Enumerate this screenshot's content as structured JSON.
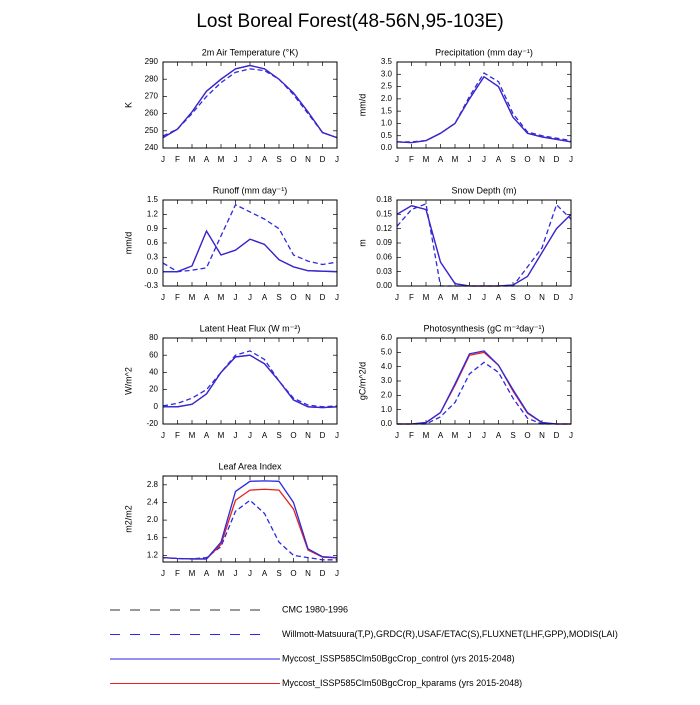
{
  "title": "Lost Boreal Forest(48-56N,95-103E)",
  "legend": [
    {
      "name": "CMC 1980-1996",
      "color": "#333333",
      "dash": true
    },
    {
      "name": "Willmott-Matsuura(T,P),GRDC(R),USAF/ETAC(S),FLUXNET(LHF,GPP),MODIS(LAI)",
      "color": "#2a2ae0",
      "dash": true
    },
    {
      "name": "Myccost_ISSP585Clm50BgcCrop_control (yrs 2015-2048)",
      "color": "#2a2ae0",
      "dash": false
    },
    {
      "name": "Myccost_ISSP585Clm50BgcCrop_kparams (yrs 2015-2048)",
      "color": "#e82020",
      "dash": false
    }
  ],
  "chart_data": [
    {
      "type": "line",
      "title": "2m Air Temperature (°K)",
      "ylabel": "K",
      "categories": [
        "J",
        "F",
        "M",
        "A",
        "M",
        "J",
        "J",
        "A",
        "S",
        "O",
        "N",
        "D",
        "J"
      ],
      "ylim": [
        240,
        290
      ],
      "yticks": [
        240,
        250,
        260,
        270,
        280,
        290
      ],
      "series": [
        {
          "name": "Willmott-Matsuura(T,P),GRDC(R),USAF/ETAC(S),FLUXNET(LHF,GPP),MODIS(LAI)",
          "color": "#2a2ae0",
          "dash": true,
          "values": [
            247,
            251,
            260,
            270,
            278,
            284,
            286,
            285,
            280,
            271,
            260,
            249,
            246
          ]
        },
        {
          "name": "Myccost_ISSP585Clm50BgcCrop_kparams (yrs 2015-2048)",
          "color": "#e82020",
          "dash": false,
          "values": [
            246,
            251,
            261,
            273,
            280,
            286,
            288,
            286,
            280,
            272,
            261,
            249,
            246
          ]
        },
        {
          "name": "Myccost_ISSP585Clm50BgcCrop_control (yrs 2015-2048)",
          "color": "#2a2ae0",
          "dash": false,
          "values": [
            246,
            251,
            261,
            273,
            280,
            286,
            288,
            286,
            280,
            272,
            261,
            249,
            246
          ]
        }
      ]
    },
    {
      "type": "line",
      "title": "Precipitation (mm day⁻¹)",
      "ylabel": "mm/d",
      "categories": [
        "J",
        "F",
        "M",
        "A",
        "M",
        "J",
        "J",
        "A",
        "S",
        "O",
        "N",
        "D",
        "J"
      ],
      "ylim": [
        0,
        3.5
      ],
      "yticks": [
        {
          "value": 0,
          "label": "0.0"
        },
        0.5,
        {
          "value": 1,
          "label": "1.0"
        },
        1.5,
        {
          "value": 2,
          "label": "2.0"
        },
        2.5,
        {
          "value": 3,
          "label": "3.0"
        },
        3.5
      ],
      "series": [
        {
          "name": "Willmott-Matsuura(T,P),GRDC(R),USAF/ETAC(S),FLUXNET(LHF,GPP),MODIS(LAI)",
          "color": "#2a2ae0",
          "dash": true,
          "values": [
            0.25,
            0.25,
            0.3,
            0.6,
            1.0,
            2.1,
            3.05,
            2.7,
            1.4,
            0.65,
            0.5,
            0.4,
            0.3
          ]
        },
        {
          "name": "Myccost_ISSP585Clm50BgcCrop_kparams (yrs 2015-2048)",
          "color": "#e82020",
          "dash": false,
          "values": [
            0.25,
            0.22,
            0.3,
            0.6,
            1.0,
            2.0,
            2.9,
            2.5,
            1.25,
            0.6,
            0.45,
            0.35,
            0.25
          ]
        },
        {
          "name": "Myccost_ISSP585Clm50BgcCrop_control (yrs 2015-2048)",
          "color": "#2a2ae0",
          "dash": false,
          "values": [
            0.25,
            0.22,
            0.3,
            0.6,
            1.0,
            2.0,
            2.9,
            2.5,
            1.25,
            0.6,
            0.45,
            0.35,
            0.25
          ]
        }
      ]
    },
    {
      "type": "line",
      "title": "Runoff (mm day⁻¹)",
      "ylabel": "mm/d",
      "categories": [
        "J",
        "F",
        "M",
        "A",
        "M",
        "J",
        "J",
        "A",
        "S",
        "O",
        "N",
        "D",
        "J"
      ],
      "ylim": [
        -0.3,
        1.5
      ],
      "yticks": [
        -0.3,
        {
          "value": 0,
          "label": "0.0"
        },
        0.3,
        0.6,
        0.9,
        1.2,
        1.5
      ],
      "series": [
        {
          "name": "Willmott-Matsuura(T,P),GRDC(R),USAF/ETAC(S),FLUXNET(LHF,GPP),MODIS(LAI)",
          "color": "#2a2ae0",
          "dash": true,
          "values": [
            0.18,
            0.0,
            0.03,
            0.08,
            0.75,
            1.4,
            1.25,
            1.1,
            0.9,
            0.35,
            0.22,
            0.15,
            0.2
          ]
        },
        {
          "name": "Myccost_ISSP585Clm50BgcCrop_kparams (yrs 2015-2048)",
          "color": "#e82020",
          "dash": false,
          "values": [
            0.0,
            0.0,
            0.12,
            0.85,
            0.35,
            0.45,
            0.68,
            0.57,
            0.25,
            0.1,
            0.02,
            0.01,
            0.0
          ]
        },
        {
          "name": "Myccost_ISSP585Clm50BgcCrop_control (yrs 2015-2048)",
          "color": "#2a2ae0",
          "dash": false,
          "values": [
            0.0,
            0.0,
            0.12,
            0.85,
            0.35,
            0.45,
            0.68,
            0.57,
            0.25,
            0.1,
            0.02,
            0.01,
            0.0
          ]
        }
      ]
    },
    {
      "type": "line",
      "title": "Snow Depth (m)",
      "ylabel": "m",
      "categories": [
        "J",
        "F",
        "M",
        "A",
        "M",
        "J",
        "J",
        "A",
        "S",
        "O",
        "N",
        "D",
        "J"
      ],
      "ylim": [
        0,
        0.18
      ],
      "yticks": [
        {
          "value": 0,
          "label": "0.00"
        },
        0.03,
        0.06,
        0.09,
        0.12,
        0.15,
        0.18
      ],
      "series": [
        {
          "name": "CMC 1980-1996",
          "color": "#2a2ae0",
          "dash": true,
          "values": [
            0.125,
            0.16,
            0.172,
            0.0,
            0.0,
            0.0,
            0.0,
            0.0,
            0.0,
            0.04,
            0.08,
            0.17,
            0.14
          ]
        },
        {
          "name": "Myccost_ISSP585Clm50BgcCrop_kparams (yrs 2015-2048)",
          "color": "#e82020",
          "dash": false,
          "values": [
            0.15,
            0.168,
            0.16,
            0.05,
            0.005,
            0.0,
            0.0,
            0.0,
            0.002,
            0.02,
            0.07,
            0.12,
            0.15
          ]
        },
        {
          "name": "Myccost_ISSP585Clm50BgcCrop_control (yrs 2015-2048)",
          "color": "#2a2ae0",
          "dash": false,
          "values": [
            0.15,
            0.168,
            0.16,
            0.05,
            0.005,
            0.0,
            0.0,
            0.0,
            0.002,
            0.02,
            0.07,
            0.12,
            0.15
          ]
        }
      ]
    },
    {
      "type": "line",
      "title": "Latent Heat Flux (W m⁻²)",
      "ylabel": "W/m^2",
      "categories": [
        "J",
        "F",
        "M",
        "A",
        "M",
        "J",
        "J",
        "A",
        "S",
        "O",
        "N",
        "D",
        "J"
      ],
      "ylim": [
        -20,
        80
      ],
      "yticks": [
        -20,
        0,
        20,
        40,
        60,
        80
      ],
      "series": [
        {
          "name": "Willmott-Matsuura(T,P),GRDC(R),USAF/ETAC(S),FLUXNET(LHF,GPP),MODIS(LAI)",
          "color": "#2a2ae0",
          "dash": true,
          "values": [
            1,
            4,
            10,
            20,
            40,
            60,
            65,
            55,
            30,
            10,
            2,
            0,
            1
          ]
        },
        {
          "name": "Myccost_ISSP585Clm50BgcCrop_kparams (yrs 2015-2048)",
          "color": "#e82020",
          "dash": false,
          "values": [
            0,
            0,
            3,
            15,
            40,
            58,
            60,
            50,
            30,
            8,
            0,
            -1,
            0
          ]
        },
        {
          "name": "Myccost_ISSP585Clm50BgcCrop_control (yrs 2015-2048)",
          "color": "#2a2ae0",
          "dash": false,
          "values": [
            0,
            0,
            3,
            15,
            40,
            58,
            60,
            50,
            30,
            8,
            0,
            -1,
            0
          ]
        }
      ]
    },
    {
      "type": "line",
      "title": "Photosynthesis (gC m⁻²day⁻¹)",
      "ylabel": "gC/m^2/d",
      "categories": [
        "J",
        "F",
        "M",
        "A",
        "M",
        "J",
        "J",
        "A",
        "S",
        "O",
        "N",
        "D",
        "J"
      ],
      "ylim": [
        0,
        6
      ],
      "yticks": [
        {
          "value": 0,
          "label": "0.0"
        },
        {
          "value": 1,
          "label": "1.0"
        },
        {
          "value": 2,
          "label": "2.0"
        },
        {
          "value": 3,
          "label": "3.0"
        },
        {
          "value": 4,
          "label": "4.0"
        },
        {
          "value": 5,
          "label": "5.0"
        },
        {
          "value": 6,
          "label": "6.0"
        }
      ],
      "series": [
        {
          "name": "Willmott-Matsuura(T,P),GRDC(R),USAF/ETAC(S),FLUXNET(LHF,GPP),MODIS(LAI)",
          "color": "#2a2ae0",
          "dash": true,
          "values": [
            0,
            0,
            0,
            0.5,
            1.5,
            3.5,
            4.3,
            3.6,
            1.8,
            0.4,
            0,
            0,
            0
          ]
        },
        {
          "name": "Myccost_ISSP585Clm50BgcCrop_kparams (yrs 2015-2048)",
          "color": "#e82020",
          "dash": false,
          "values": [
            0,
            0,
            0.1,
            0.8,
            2.7,
            4.8,
            5.0,
            4.1,
            2.3,
            0.75,
            0.1,
            0,
            0
          ]
        },
        {
          "name": "Myccost_ISSP585Clm50BgcCrop_control (yrs 2015-2048)",
          "color": "#2a2ae0",
          "dash": false,
          "values": [
            0,
            0,
            0.1,
            0.8,
            2.8,
            4.9,
            5.1,
            4.1,
            2.4,
            0.8,
            0.1,
            0,
            0
          ]
        }
      ]
    },
    {
      "type": "line",
      "title": "Leaf Area Index",
      "ylabel": "m2/m2",
      "categories": [
        "J",
        "F",
        "M",
        "A",
        "M",
        "J",
        "J",
        "A",
        "S",
        "O",
        "N",
        "D",
        "J"
      ],
      "ylim": [
        1.05,
        3.0
      ],
      "yticks": [
        1.2,
        1.6,
        {
          "value": 2,
          "label": "2.0"
        },
        2.4,
        2.8
      ],
      "series": [
        {
          "name": "Willmott-Matsuura(T,P),GRDC(R),USAF/ETAC(S),FLUXNET(LHF,GPP),MODIS(LAI)",
          "color": "#2a2ae0",
          "dash": true,
          "values": [
            1.15,
            1.13,
            1.12,
            1.15,
            1.4,
            2.2,
            2.45,
            2.15,
            1.5,
            1.2,
            1.15,
            1.1,
            1.1
          ]
        },
        {
          "name": "Myccost_ISSP585Clm50BgcCrop_kparams (yrs 2015-2048)",
          "color": "#e82020",
          "dash": false,
          "values": [
            1.15,
            1.13,
            1.12,
            1.12,
            1.45,
            2.45,
            2.68,
            2.7,
            2.68,
            2.25,
            1.32,
            1.16,
            1.14
          ]
        },
        {
          "name": "Myccost_ISSP585Clm50BgcCrop_control (yrs 2015-2048)",
          "color": "#2a2ae0",
          "dash": false,
          "values": [
            1.15,
            1.13,
            1.12,
            1.12,
            1.5,
            2.65,
            2.88,
            2.89,
            2.88,
            2.4,
            1.35,
            1.17,
            1.15
          ]
        }
      ]
    }
  ]
}
